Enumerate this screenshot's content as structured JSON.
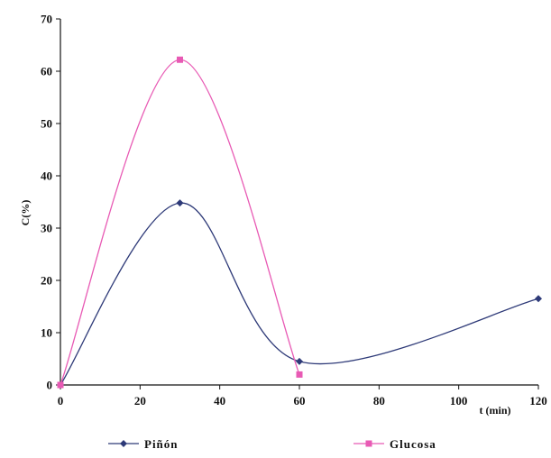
{
  "chart_data": {
    "type": "line",
    "xlabel": "t (min)",
    "ylabel": "C(%)",
    "xlim": [
      0,
      120
    ],
    "ylim": [
      0,
      70
    ],
    "x_ticks": [
      "0",
      "20",
      "40",
      "60",
      "80",
      "100",
      "120"
    ],
    "y_ticks": [
      "0",
      "10",
      "20",
      "30",
      "40",
      "50",
      "60",
      "70"
    ],
    "grid": false,
    "legend_position": "bottom",
    "series": [
      {
        "name": "Piñón",
        "color": "#2e3a78",
        "marker": "diamond",
        "x": [
          0,
          30,
          60,
          120
        ],
        "y": [
          0,
          34.8,
          4.5,
          16.5
        ]
      },
      {
        "name": "Glucosa",
        "color": "#e85ab4",
        "marker": "square",
        "x": [
          0,
          30,
          60
        ],
        "y": [
          0,
          62.2,
          2
        ]
      }
    ]
  }
}
